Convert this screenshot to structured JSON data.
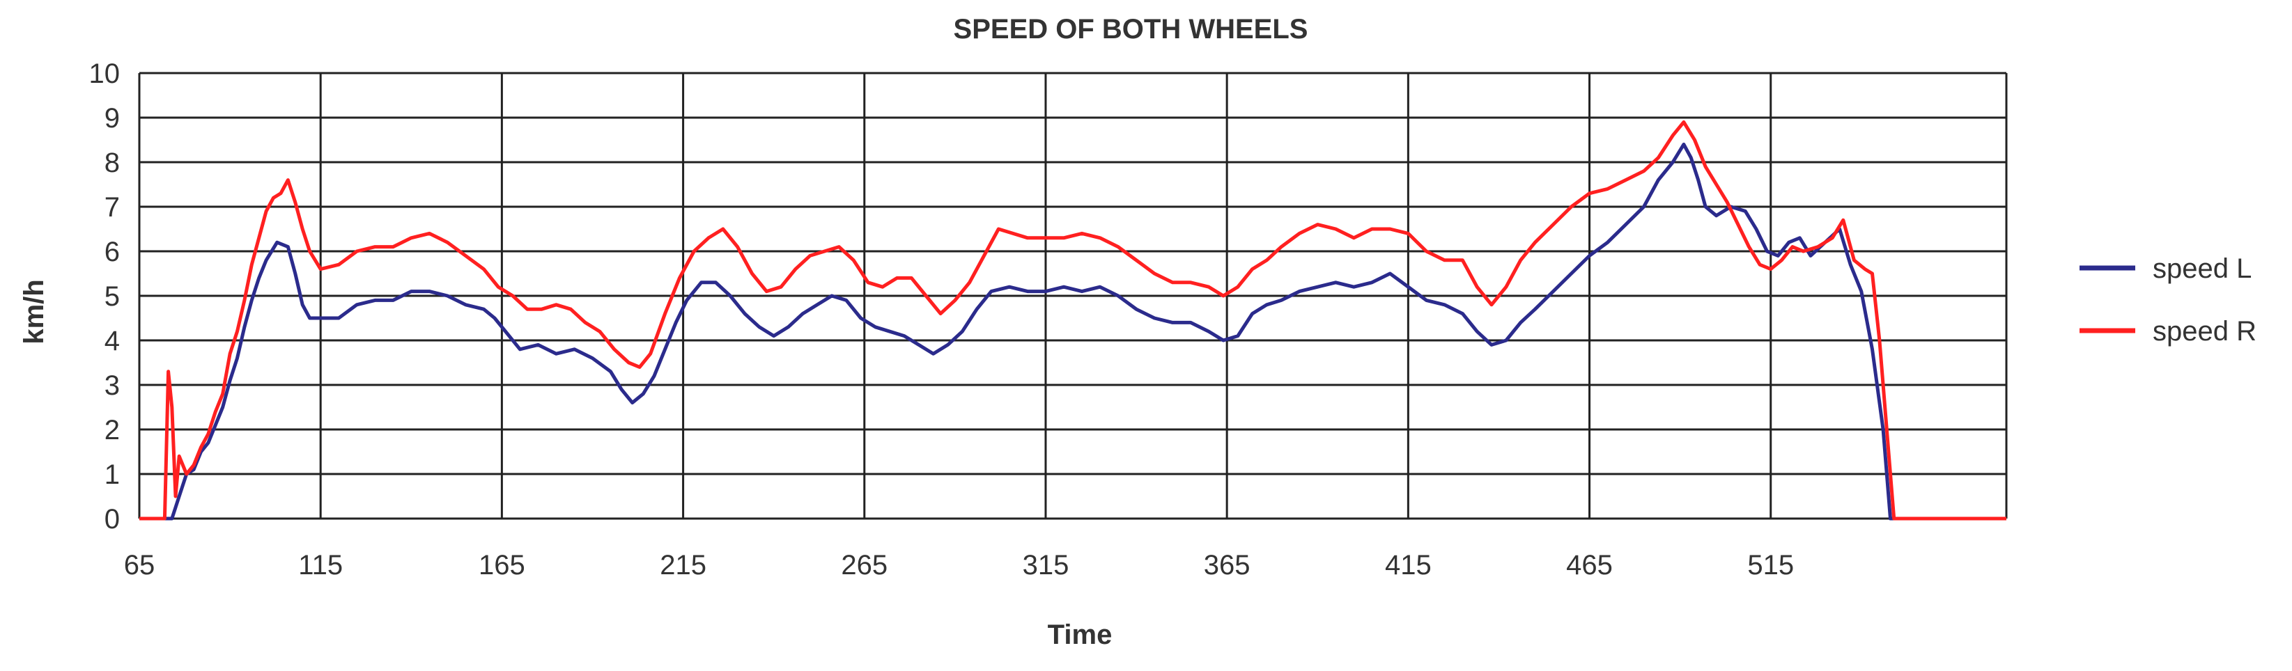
{
  "chart_data": {
    "type": "line",
    "title": "SPEED OF BOTH WHEELS",
    "xlabel": "Time",
    "ylabel": "km/h",
    "xlim": [
      65,
      580
    ],
    "ylim": [
      0,
      10
    ],
    "xticks": [
      65,
      115,
      165,
      215,
      265,
      315,
      365,
      415,
      465,
      515
    ],
    "yticks": [
      0,
      1,
      2,
      3,
      4,
      5,
      6,
      7,
      8,
      9,
      10
    ],
    "grid": true,
    "legend_position": "right",
    "series": [
      {
        "name": "speed L",
        "color": "#2b2b8c",
        "points": [
          [
            65,
            0
          ],
          [
            74,
            0
          ],
          [
            76,
            0.5
          ],
          [
            78,
            1
          ],
          [
            80,
            1.1
          ],
          [
            82,
            1.5
          ],
          [
            84,
            1.7
          ],
          [
            86,
            2.1
          ],
          [
            88,
            2.5
          ],
          [
            90,
            3.1
          ],
          [
            92,
            3.6
          ],
          [
            94,
            4.3
          ],
          [
            96,
            4.9
          ],
          [
            98,
            5.4
          ],
          [
            100,
            5.8
          ],
          [
            103,
            6.2
          ],
          [
            106,
            6.1
          ],
          [
            108,
            5.5
          ],
          [
            110,
            4.8
          ],
          [
            112,
            4.5
          ],
          [
            115,
            4.5
          ],
          [
            120,
            4.5
          ],
          [
            125,
            4.8
          ],
          [
            130,
            4.9
          ],
          [
            135,
            4.9
          ],
          [
            140,
            5.1
          ],
          [
            145,
            5.1
          ],
          [
            150,
            5.0
          ],
          [
            155,
            4.8
          ],
          [
            160,
            4.7
          ],
          [
            163,
            4.5
          ],
          [
            167,
            4.1
          ],
          [
            170,
            3.8
          ],
          [
            175,
            3.9
          ],
          [
            180,
            3.7
          ],
          [
            185,
            3.8
          ],
          [
            190,
            3.6
          ],
          [
            195,
            3.3
          ],
          [
            198,
            2.9
          ],
          [
            201,
            2.6
          ],
          [
            204,
            2.8
          ],
          [
            207,
            3.2
          ],
          [
            210,
            3.8
          ],
          [
            213,
            4.4
          ],
          [
            216,
            4.9
          ],
          [
            220,
            5.3
          ],
          [
            224,
            5.3
          ],
          [
            228,
            5.0
          ],
          [
            232,
            4.6
          ],
          [
            236,
            4.3
          ],
          [
            240,
            4.1
          ],
          [
            244,
            4.3
          ],
          [
            248,
            4.6
          ],
          [
            252,
            4.8
          ],
          [
            256,
            5.0
          ],
          [
            260,
            4.9
          ],
          [
            264,
            4.5
          ],
          [
            268,
            4.3
          ],
          [
            272,
            4.2
          ],
          [
            276,
            4.1
          ],
          [
            280,
            3.9
          ],
          [
            284,
            3.7
          ],
          [
            288,
            3.9
          ],
          [
            292,
            4.2
          ],
          [
            296,
            4.7
          ],
          [
            300,
            5.1
          ],
          [
            305,
            5.2
          ],
          [
            310,
            5.1
          ],
          [
            315,
            5.1
          ],
          [
            320,
            5.2
          ],
          [
            325,
            5.1
          ],
          [
            330,
            5.2
          ],
          [
            335,
            5.0
          ],
          [
            340,
            4.7
          ],
          [
            345,
            4.5
          ],
          [
            350,
            4.4
          ],
          [
            355,
            4.4
          ],
          [
            360,
            4.2
          ],
          [
            364,
            4.0
          ],
          [
            368,
            4.1
          ],
          [
            372,
            4.6
          ],
          [
            376,
            4.8
          ],
          [
            380,
            4.9
          ],
          [
            385,
            5.1
          ],
          [
            390,
            5.2
          ],
          [
            395,
            5.3
          ],
          [
            400,
            5.2
          ],
          [
            405,
            5.3
          ],
          [
            410,
            5.5
          ],
          [
            415,
            5.2
          ],
          [
            420,
            4.9
          ],
          [
            425,
            4.8
          ],
          [
            430,
            4.6
          ],
          [
            434,
            4.2
          ],
          [
            438,
            3.9
          ],
          [
            442,
            4.0
          ],
          [
            446,
            4.4
          ],
          [
            450,
            4.7
          ],
          [
            455,
            5.1
          ],
          [
            460,
            5.5
          ],
          [
            465,
            5.9
          ],
          [
            470,
            6.2
          ],
          [
            475,
            6.6
          ],
          [
            480,
            7.0
          ],
          [
            484,
            7.6
          ],
          [
            488,
            8.0
          ],
          [
            491,
            8.4
          ],
          [
            493,
            8.1
          ],
          [
            495,
            7.6
          ],
          [
            497,
            7.0
          ],
          [
            500,
            6.8
          ],
          [
            504,
            7.0
          ],
          [
            508,
            6.9
          ],
          [
            511,
            6.5
          ],
          [
            514,
            6.0
          ],
          [
            517,
            5.9
          ],
          [
            520,
            6.2
          ],
          [
            523,
            6.3
          ],
          [
            526,
            5.9
          ],
          [
            530,
            6.2
          ],
          [
            534,
            6.5
          ],
          [
            537,
            5.7
          ],
          [
            540,
            5.1
          ],
          [
            543,
            3.8
          ],
          [
            546,
            2.0
          ],
          [
            548,
            0
          ],
          [
            580,
            0
          ]
        ]
      },
      {
        "name": "speed R",
        "color": "#ff2020",
        "points": [
          [
            65,
            0
          ],
          [
            72,
            0
          ],
          [
            73,
            3.3
          ],
          [
            74,
            2.5
          ],
          [
            75,
            0.5
          ],
          [
            76,
            1.4
          ],
          [
            78,
            1.0
          ],
          [
            80,
            1.2
          ],
          [
            82,
            1.6
          ],
          [
            84,
            1.9
          ],
          [
            86,
            2.4
          ],
          [
            88,
            2.8
          ],
          [
            90,
            3.7
          ],
          [
            92,
            4.2
          ],
          [
            94,
            4.9
          ],
          [
            96,
            5.7
          ],
          [
            98,
            6.3
          ],
          [
            100,
            6.9
          ],
          [
            102,
            7.2
          ],
          [
            104,
            7.3
          ],
          [
            106,
            7.6
          ],
          [
            108,
            7.1
          ],
          [
            110,
            6.5
          ],
          [
            112,
            6.0
          ],
          [
            115,
            5.6
          ],
          [
            120,
            5.7
          ],
          [
            125,
            6.0
          ],
          [
            130,
            6.1
          ],
          [
            135,
            6.1
          ],
          [
            140,
            6.3
          ],
          [
            145,
            6.4
          ],
          [
            150,
            6.2
          ],
          [
            155,
            5.9
          ],
          [
            160,
            5.6
          ],
          [
            164,
            5.2
          ],
          [
            168,
            5.0
          ],
          [
            172,
            4.7
          ],
          [
            176,
            4.7
          ],
          [
            180,
            4.8
          ],
          [
            184,
            4.7
          ],
          [
            188,
            4.4
          ],
          [
            192,
            4.2
          ],
          [
            196,
            3.8
          ],
          [
            200,
            3.5
          ],
          [
            203,
            3.4
          ],
          [
            206,
            3.7
          ],
          [
            210,
            4.6
          ],
          [
            214,
            5.4
          ],
          [
            218,
            6.0
          ],
          [
            222,
            6.3
          ],
          [
            226,
            6.5
          ],
          [
            230,
            6.1
          ],
          [
            234,
            5.5
          ],
          [
            238,
            5.1
          ],
          [
            242,
            5.2
          ],
          [
            246,
            5.6
          ],
          [
            250,
            5.9
          ],
          [
            254,
            6.0
          ],
          [
            258,
            6.1
          ],
          [
            262,
            5.8
          ],
          [
            266,
            5.3
          ],
          [
            270,
            5.2
          ],
          [
            274,
            5.4
          ],
          [
            278,
            5.4
          ],
          [
            282,
            5.0
          ],
          [
            286,
            4.6
          ],
          [
            290,
            4.9
          ],
          [
            294,
            5.3
          ],
          [
            298,
            5.9
          ],
          [
            302,
            6.5
          ],
          [
            306,
            6.4
          ],
          [
            310,
            6.3
          ],
          [
            316,
            6.3
          ],
          [
            320,
            6.3
          ],
          [
            325,
            6.4
          ],
          [
            330,
            6.3
          ],
          [
            335,
            6.1
          ],
          [
            340,
            5.8
          ],
          [
            345,
            5.5
          ],
          [
            350,
            5.3
          ],
          [
            355,
            5.3
          ],
          [
            360,
            5.2
          ],
          [
            364,
            5.0
          ],
          [
            368,
            5.2
          ],
          [
            372,
            5.6
          ],
          [
            376,
            5.8
          ],
          [
            380,
            6.1
          ],
          [
            385,
            6.4
          ],
          [
            390,
            6.6
          ],
          [
            395,
            6.5
          ],
          [
            400,
            6.3
          ],
          [
            405,
            6.5
          ],
          [
            410,
            6.5
          ],
          [
            415,
            6.4
          ],
          [
            420,
            6.0
          ],
          [
            425,
            5.8
          ],
          [
            430,
            5.8
          ],
          [
            434,
            5.2
          ],
          [
            438,
            4.8
          ],
          [
            442,
            5.2
          ],
          [
            446,
            5.8
          ],
          [
            450,
            6.2
          ],
          [
            455,
            6.6
          ],
          [
            460,
            7.0
          ],
          [
            465,
            7.3
          ],
          [
            470,
            7.4
          ],
          [
            475,
            7.6
          ],
          [
            480,
            7.8
          ],
          [
            484,
            8.1
          ],
          [
            488,
            8.6
          ],
          [
            491,
            8.9
          ],
          [
            494,
            8.5
          ],
          [
            497,
            7.9
          ],
          [
            500,
            7.5
          ],
          [
            503,
            7.1
          ],
          [
            506,
            6.6
          ],
          [
            509,
            6.1
          ],
          [
            512,
            5.7
          ],
          [
            515,
            5.6
          ],
          [
            518,
            5.8
          ],
          [
            521,
            6.1
          ],
          [
            524,
            6.0
          ],
          [
            528,
            6.1
          ],
          [
            532,
            6.3
          ],
          [
            535,
            6.7
          ],
          [
            538,
            5.8
          ],
          [
            541,
            5.6
          ],
          [
            543,
            5.5
          ],
          [
            545,
            4.0
          ],
          [
            547,
            2.0
          ],
          [
            549,
            0
          ],
          [
            580,
            0
          ]
        ]
      }
    ]
  }
}
